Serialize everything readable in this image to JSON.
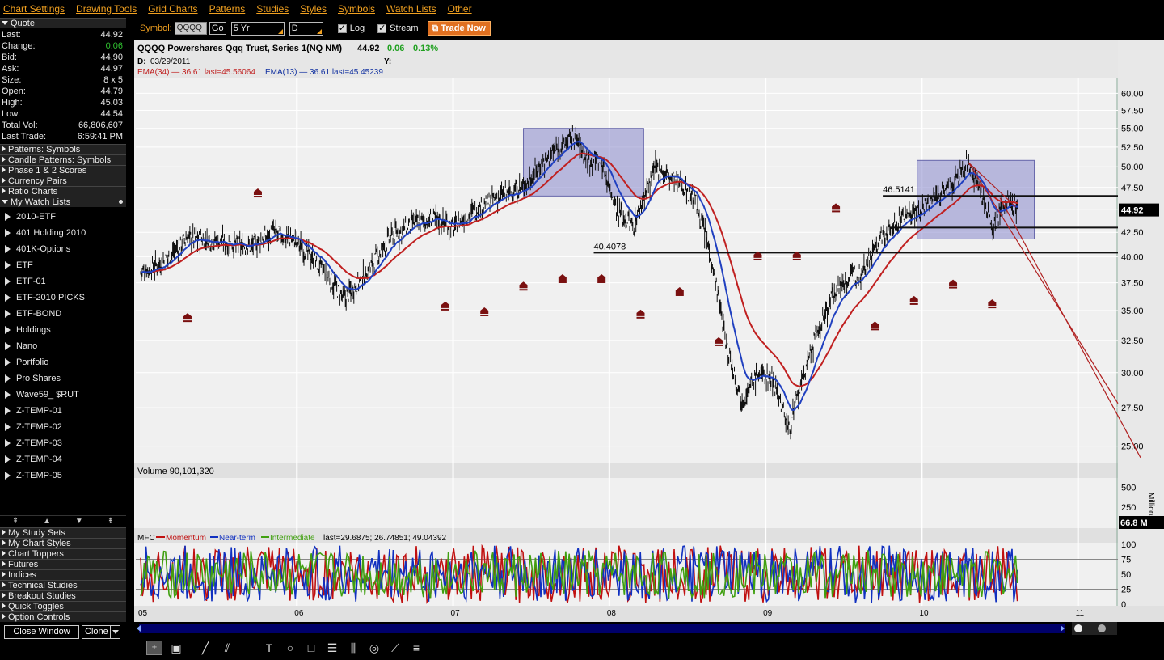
{
  "menu": [
    "Chart Settings",
    "Drawing Tools",
    "Grid Charts",
    "Patterns",
    "Studies",
    "Styles",
    "Symbols",
    "Watch Lists",
    "Other"
  ],
  "quote": {
    "header": "Quote",
    "rows": [
      {
        "label": "Last:",
        "value": "44.92"
      },
      {
        "label": "Change:",
        "value": "0.06"
      },
      {
        "label": "Bid:",
        "value": "44.90"
      },
      {
        "label": "Ask:",
        "value": "44.97"
      },
      {
        "label": "Size:",
        "value": "8 x 5"
      },
      {
        "label": "Open:",
        "value": "44.79"
      },
      {
        "label": "High:",
        "value": "45.03"
      },
      {
        "label": "Low:",
        "value": "44.54"
      },
      {
        "label": "Total Vol:",
        "value": "66,806,607"
      },
      {
        "label": "Last Trade:",
        "value": "6:59:41 PM"
      }
    ]
  },
  "sections_top": [
    "Patterns: Symbols",
    "Candle Patterns: Symbols",
    "Phase 1 & 2 Scores",
    "Currency Pairs",
    "Ratio Charts"
  ],
  "watch_lists": {
    "header": "My Watch Lists",
    "items": [
      "2010-ETF",
      "401 Holding 2010",
      "401K-Options",
      "ETF",
      "ETF-01",
      "ETF-2010 PICKS",
      "ETF-BOND",
      "Holdings",
      "Nano",
      "Portfolio",
      "Pro Shares",
      "Wave59_ $RUT",
      "Z-TEMP-01",
      "Z-TEMP-02",
      "Z-TEMP-03",
      "Z-TEMP-04",
      "Z-TEMP-05"
    ]
  },
  "sections_bottom": [
    "My Study Sets",
    "My Chart Styles",
    "Chart Toppers",
    "Futures",
    "Indices",
    "Technical Studies",
    "Breakout Studies",
    "Quick Toggles",
    "Option Controls"
  ],
  "buttons": {
    "close_window": "Close Window",
    "clone": "Clone"
  },
  "toolbar": {
    "symbol_label": "Symbol:",
    "symbol_value": "QQQQ",
    "go": "Go",
    "range": "5 Yr",
    "interval": "D",
    "log": "Log",
    "stream": "Stream",
    "trade_now": "Trade Now"
  },
  "chart": {
    "title": "QQQQ Powershares Qqq Trust, Series 1(NQ NM)",
    "price": "44.92",
    "change": "0.06",
    "change_pct": "0.13%",
    "date_label": "D:",
    "date": "03/29/2011",
    "y_label": "Y:",
    "ema34": "EMA(34) — 36.61 last=45.56064",
    "ema13": "EMA(13) — 36.61 last=45.45239",
    "volume_label": "Volume 90,101,320",
    "volume_unit": "Millions",
    "volume_current": "66.8 M",
    "price_tag": "44.92",
    "mfc_prefix": "MFC",
    "mfc_momentum": "Momentum",
    "mfc_near": "Near-term",
    "mfc_inter": "Intermediate",
    "mfc_last": "last=29.6875; 26.74851; 49.04392",
    "level_1": "46.5141",
    "level_2": "40.4078",
    "colors": {
      "ema34": "#c02020",
      "ema13": "#1030a0",
      "up": "#20a020",
      "box": "#8888cc",
      "marker": "#7a1010"
    }
  },
  "chart_data": {
    "type": "line",
    "title": "QQQQ Powershares Qqq Trust, Series 1(NQ NM)",
    "log_scale": true,
    "x_ticks": [
      "05",
      "06",
      "07",
      "08",
      "09",
      "10",
      "11"
    ],
    "y_ticks": [
      25,
      27.5,
      30,
      32.5,
      35,
      37.5,
      40,
      42.5,
      45,
      47.5,
      50,
      52.5,
      55,
      57.5,
      60
    ],
    "ylim": [
      24,
      62
    ],
    "price_series": {
      "x": [
        2005.0,
        2005.15,
        2005.3,
        2005.5,
        2005.7,
        2005.85,
        2006.0,
        2006.15,
        2006.3,
        2006.45,
        2006.6,
        2006.75,
        2006.9,
        2007.0,
        2007.15,
        2007.3,
        2007.45,
        2007.55,
        2007.65,
        2007.78,
        2007.85,
        2007.95,
        2008.05,
        2008.15,
        2008.3,
        2008.45,
        2008.55,
        2008.65,
        2008.75,
        2008.85,
        2008.95,
        2009.05,
        2009.15,
        2009.3,
        2009.45,
        2009.6,
        2009.75,
        2009.9,
        2010.0,
        2010.1,
        2010.2,
        2010.3,
        2010.38,
        2010.45,
        2010.55,
        2010.62
      ],
      "y": [
        38.5,
        39.5,
        42.0,
        41.5,
        41.0,
        42.5,
        41.5,
        39.0,
        36.0,
        38.5,
        42.0,
        43.5,
        44.0,
        43.0,
        45.0,
        46.5,
        47.5,
        50.0,
        52.0,
        54.0,
        51.0,
        50.5,
        45.0,
        43.0,
        50.0,
        48.0,
        46.0,
        40.0,
        32.0,
        28.0,
        30.0,
        29.5,
        26.0,
        32.0,
        37.0,
        38.5,
        42.0,
        44.5,
        45.0,
        46.5,
        48.0,
        50.5,
        47.0,
        43.0,
        46.0,
        44.9
      ]
    },
    "ema34_last": 45.56064,
    "ema13_last": 45.45239,
    "horizontal_levels": [
      46.5141,
      43.0,
      40.4078
    ],
    "volume_ticks": [
      250,
      500
    ],
    "volume": 90101320,
    "mfc_ticks": [
      0,
      25,
      50,
      75,
      100
    ],
    "mfc_last": {
      "momentum": 29.6875,
      "near_term": 26.74851,
      "intermediate": 49.04392
    }
  }
}
